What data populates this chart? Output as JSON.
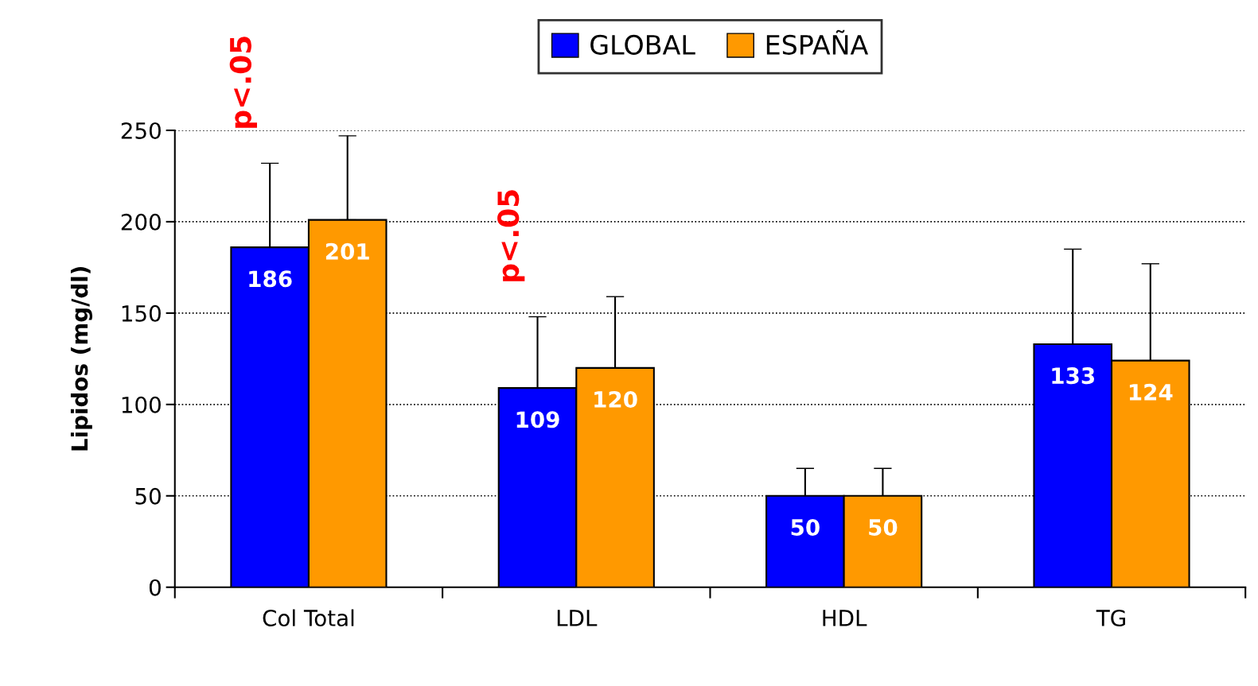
{
  "chart_data": {
    "type": "bar",
    "ylabel": "Lipidos (mg/dl)",
    "categories": [
      "Col Total",
      "LDL",
      "HDL",
      "TG"
    ],
    "series": [
      {
        "name": "GLOBAL",
        "color": "#0000ff",
        "values": [
          186,
          109,
          50,
          133
        ],
        "errors": [
          46,
          39,
          15,
          52
        ]
      },
      {
        "name": "ESPAÑA",
        "color": "#ff9900",
        "values": [
          201,
          120,
          50,
          124
        ],
        "errors": [
          46,
          39,
          15,
          53
        ]
      }
    ],
    "ylim": [
      0,
      250
    ],
    "yticks": [
      0,
      50,
      100,
      150,
      200,
      250
    ],
    "grid": "y",
    "legend": "top",
    "data_labels": true,
    "annotations": [
      "p<.05",
      "p<.05"
    ]
  }
}
